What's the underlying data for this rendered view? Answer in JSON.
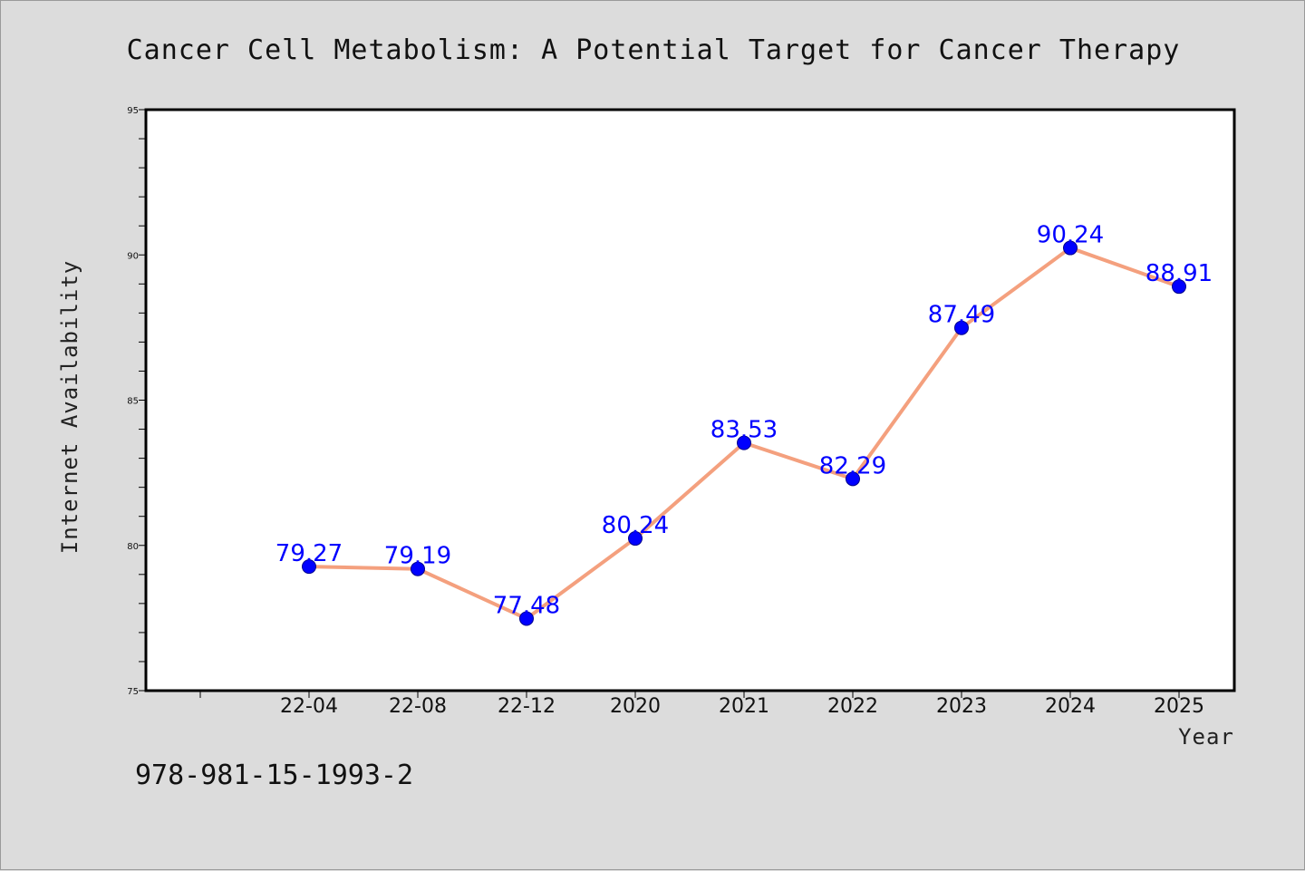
{
  "footer": {
    "isbn": "978-981-15-1993-2"
  },
  "chart_data": {
    "type": "line",
    "title": "Cancer Cell Metabolism: A Potential Target for Cancer Therapy",
    "xlabel": "Year",
    "ylabel": "Internet Availability",
    "categories": [
      "22-04",
      "22-08",
      "22-12",
      "2020",
      "2021",
      "2022",
      "2023",
      "2024",
      "2025"
    ],
    "values": [
      79.27,
      79.19,
      77.48,
      80.24,
      83.53,
      82.29,
      87.49,
      90.24,
      88.91
    ],
    "data_labels": [
      "79.27",
      "79.19",
      "77.48",
      "80.24",
      "83.53",
      "82.29",
      "87.49",
      "90.24",
      "88.91"
    ],
    "ylim": [
      75,
      95
    ],
    "yticks": [
      "75",
      "80",
      "85",
      "90",
      "95"
    ],
    "grid": false,
    "line_color": "#f4a07e",
    "marker_color": "#0000ff",
    "label_color": "#0000ff"
  }
}
